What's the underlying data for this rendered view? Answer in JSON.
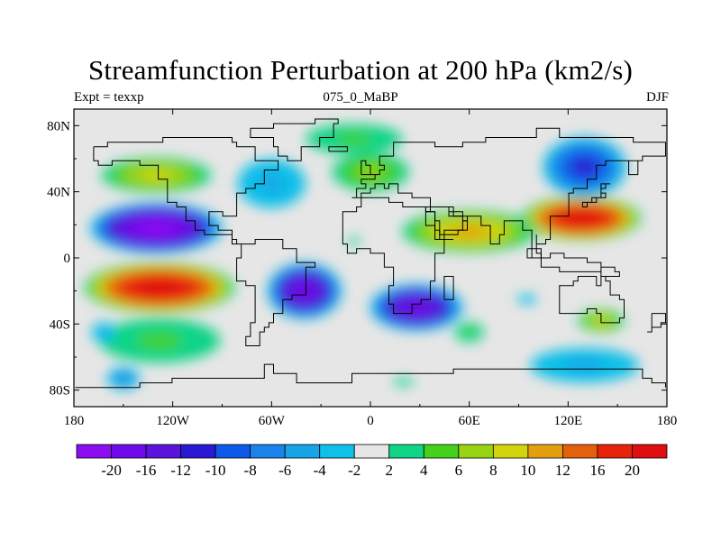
{
  "chart_data": {
    "type": "heatmap",
    "title": "Streamfunction Perturbation at 200 hPa (km2/s)",
    "subtitle_left": "Expt = texxp",
    "subtitle_center": "075_0_MaBP",
    "subtitle_right": "DJF",
    "x_ticks": [
      {
        "value": -180,
        "label": "180"
      },
      {
        "value": -120,
        "label": "120W"
      },
      {
        "value": -60,
        "label": "60W"
      },
      {
        "value": 0,
        "label": "0"
      },
      {
        "value": 60,
        "label": "60E"
      },
      {
        "value": 120,
        "label": "120E"
      },
      {
        "value": 180,
        "label": "180"
      }
    ],
    "y_ticks": [
      {
        "value": 80,
        "label": "80N"
      },
      {
        "value": 40,
        "label": "40N"
      },
      {
        "value": 0,
        "label": "0"
      },
      {
        "value": -40,
        "label": "40S"
      },
      {
        "value": -80,
        "label": "80S"
      }
    ],
    "xlim": [
      -180,
      180
    ],
    "ylim": [
      -90,
      90
    ],
    "colorbar": {
      "levels": [
        "-20",
        "-16",
        "-12",
        "-10",
        "-8",
        "-6",
        "-4",
        "-2",
        "2",
        "4",
        "6",
        "8",
        "10",
        "12",
        "16",
        "20"
      ],
      "colors": [
        "#8a0ef0",
        "#6e0be8",
        "#5a14dc",
        "#2b18d2",
        "#0e5ae8",
        "#1a82ea",
        "#18a4e8",
        "#10c0e8",
        "#e6e6e6",
        "#10d486",
        "#43d11a",
        "#98d314",
        "#d4d40c",
        "#e2a010",
        "#e4600c",
        "#e6240c",
        "#e00e0e"
      ]
    },
    "anomalies": [
      {
        "lon": -130,
        "lat": 18,
        "value": -20,
        "rx": 42,
        "ry": 16
      },
      {
        "lon": -128,
        "lat": -18,
        "value": 20,
        "rx": 48,
        "ry": 16
      },
      {
        "lon": -40,
        "lat": -20,
        "value": -16,
        "rx": 24,
        "ry": 18
      },
      {
        "lon": 28,
        "lat": -30,
        "value": -16,
        "rx": 30,
        "ry": 15
      },
      {
        "lon": 128,
        "lat": 24,
        "value": 20,
        "rx": 38,
        "ry": 14
      },
      {
        "lon": 60,
        "lat": 16,
        "value": 10,
        "rx": 45,
        "ry": 14
      },
      {
        "lon": -130,
        "lat": 50,
        "value": 8,
        "rx": 38,
        "ry": 12
      },
      {
        "lon": 0,
        "lat": 52,
        "value": 6,
        "rx": 28,
        "ry": 14
      },
      {
        "lon": -10,
        "lat": 72,
        "value": 4,
        "rx": 40,
        "ry": 12
      },
      {
        "lon": 130,
        "lat": 55,
        "value": -10,
        "rx": 28,
        "ry": 20
      },
      {
        "lon": -60,
        "lat": 45,
        "value": -4,
        "rx": 28,
        "ry": 20
      },
      {
        "lon": -128,
        "lat": -50,
        "value": 4,
        "rx": 50,
        "ry": 18
      },
      {
        "lon": 130,
        "lat": -65,
        "value": -4,
        "rx": 45,
        "ry": 14
      },
      {
        "lon": 140,
        "lat": -38,
        "value": 8,
        "rx": 16,
        "ry": 8
      },
      {
        "lon": 95,
        "lat": -25,
        "value": -2,
        "rx": 22,
        "ry": 10
      },
      {
        "lon": -10,
        "lat": 10,
        "value": 2,
        "rx": 14,
        "ry": 8
      },
      {
        "lon": -162,
        "lat": -45,
        "value": -4,
        "rx": 10,
        "ry": 8
      },
      {
        "lon": -150,
        "lat": -73,
        "value": -6,
        "rx": 12,
        "ry": 8
      },
      {
        "lon": 20,
        "lat": -75,
        "value": 2,
        "rx": 24,
        "ry": 8
      },
      {
        "lon": 60,
        "lat": -45,
        "value": 4,
        "rx": 12,
        "ry": 8
      }
    ]
  }
}
